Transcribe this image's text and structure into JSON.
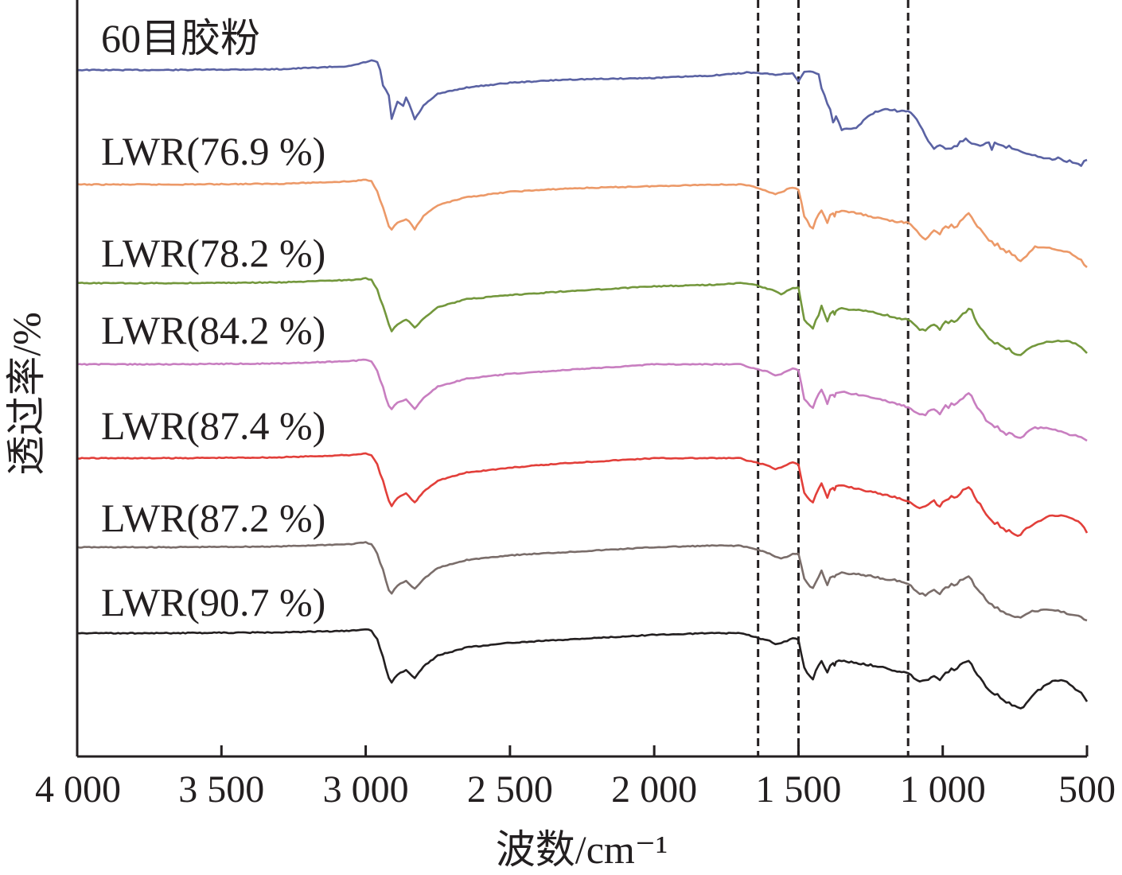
{
  "chart_data": {
    "type": "line",
    "xlabel": "波数/cm⁻¹",
    "ylabel": "透过率/%",
    "xlim": [
      4000,
      500
    ],
    "x_ticks": [
      4000,
      3500,
      3000,
      2500,
      2000,
      1500,
      1000,
      500
    ],
    "x_tick_labels": [
      "4 000",
      "3 500",
      "3 000",
      "2 500",
      "2 000",
      "1 500",
      "1 000",
      "500"
    ],
    "reference_lines_x": [
      1640,
      1500,
      1120
    ],
    "y_units": "arbitrary offset transmittance (relative to each trace baseline)",
    "grid": false,
    "legend": "inline labels above each trace",
    "x": [
      4000,
      3700,
      3300,
      3050,
      3000,
      2980,
      2960,
      2950,
      2940,
      2930,
      2920,
      2910,
      2890,
      2870,
      2860,
      2850,
      2830,
      2800,
      2750,
      2650,
      2500,
      2300,
      2000,
      1800,
      1700,
      1680,
      1640,
      1600,
      1580,
      1560,
      1540,
      1520,
      1500,
      1480,
      1460,
      1450,
      1440,
      1430,
      1420,
      1400,
      1390,
      1380,
      1375,
      1370,
      1350,
      1300,
      1250,
      1200,
      1150,
      1120,
      1100,
      1080,
      1060,
      1050,
      1040,
      1030,
      1020,
      1010,
      1000,
      990,
      980,
      970,
      960,
      950,
      940,
      930,
      920,
      910,
      900,
      890,
      880,
      870,
      860,
      850,
      840,
      830,
      820,
      810,
      800,
      790,
      780,
      770,
      760,
      750,
      740,
      730,
      720,
      710,
      700,
      690,
      680,
      670,
      660,
      650,
      640,
      630,
      620,
      600,
      580,
      560,
      540,
      520,
      510,
      500
    ],
    "series": [
      {
        "name": "60目胶粉",
        "color": "#5a62a3",
        "values": [
          0,
          0,
          -1,
          -5,
          -10,
          -12,
          -10,
          0,
          20,
          25,
          32,
          62,
          40,
          45,
          35,
          42,
          62,
          45,
          30,
          22,
          16,
          12,
          10,
          7,
          4,
          3,
          4,
          5,
          6,
          5,
          5,
          4,
          14,
          2,
          2,
          3,
          4,
          5,
          22,
          42,
          50,
          67,
          62,
          58,
          75,
          72,
          56,
          48,
          52,
          52,
          58,
          68,
          82,
          90,
          95,
          100,
          96,
          94,
          97,
          100,
          98,
          99,
          96,
          95,
          90,
          89,
          87,
          90,
          92,
          94,
          93,
          95,
          95,
          92,
          90,
          100,
          92,
          94,
          95,
          95,
          98,
          96,
          99,
          100,
          100,
          102,
          104,
          105,
          105,
          106,
          108,
          109,
          110,
          111,
          112,
          112,
          113,
          110,
          115,
          114,
          118,
          120,
          115,
          113
        ]
      },
      {
        "name": "LWR(76.9 %)",
        "color": "#ec9968",
        "values": [
          0,
          0,
          -1,
          -4,
          -6,
          -4,
          8,
          20,
          28,
          40,
          52,
          56,
          48,
          45,
          44,
          46,
          56,
          40,
          26,
          16,
          9,
          5,
          2,
          0,
          0,
          1,
          4,
          10,
          12,
          10,
          6,
          4,
          6,
          40,
          52,
          55,
          45,
          38,
          32,
          48,
          38,
          36,
          40,
          35,
          33,
          36,
          40,
          44,
          47,
          48,
          55,
          62,
          70,
          65,
          62,
          58,
          60,
          62,
          56,
          52,
          55,
          50,
          54,
          52,
          46,
          44,
          40,
          36,
          40,
          48,
          52,
          56,
          60,
          66,
          70,
          72,
          76,
          74,
          80,
          82,
          86,
          84,
          88,
          90,
          94,
          96,
          92,
          90,
          85,
          82,
          78,
          78,
          78,
          79,
          80,
          80,
          81,
          82,
          84,
          86,
          90,
          95,
          100,
          104
        ]
      },
      {
        "name": "LWR(78.2 %)",
        "color": "#73973c",
        "values": [
          0,
          0,
          -1,
          -4,
          -6,
          -4,
          8,
          20,
          28,
          40,
          52,
          60,
          52,
          48,
          46,
          48,
          56,
          44,
          30,
          20,
          15,
          10,
          4,
          2,
          0,
          0,
          3,
          8,
          10,
          14,
          10,
          6,
          6,
          46,
          54,
          56,
          46,
          40,
          28,
          48,
          38,
          36,
          40,
          34,
          32,
          34,
          36,
          40,
          44,
          46,
          52,
          58,
          60,
          56,
          54,
          52,
          55,
          58,
          52,
          48,
          50,
          46,
          48,
          46,
          42,
          38,
          36,
          32,
          34,
          44,
          50,
          55,
          60,
          66,
          70,
          72,
          76,
          74,
          78,
          80,
          84,
          82,
          86,
          88,
          90,
          90,
          88,
          84,
          82,
          80,
          78,
          77,
          76,
          75,
          74,
          74,
          74,
          73,
          72,
          74,
          76,
          80,
          84,
          88
        ]
      },
      {
        "name": "LWR(84.2 %)",
        "color": "#c87ec0",
        "values": [
          0,
          0,
          -1,
          -4,
          -6,
          -4,
          8,
          20,
          28,
          42,
          52,
          56,
          48,
          46,
          44,
          48,
          56,
          42,
          28,
          18,
          12,
          7,
          0,
          0,
          0,
          3,
          6,
          10,
          14,
          12,
          8,
          5,
          8,
          44,
          52,
          55,
          45,
          38,
          32,
          50,
          40,
          38,
          40,
          36,
          34,
          38,
          42,
          46,
          50,
          54,
          60,
          62,
          64,
          60,
          58,
          56,
          60,
          62,
          56,
          52,
          54,
          50,
          52,
          48,
          44,
          42,
          38,
          36,
          40,
          48,
          54,
          58,
          64,
          70,
          74,
          76,
          80,
          78,
          84,
          86,
          88,
          86,
          88,
          90,
          92,
          92,
          90,
          86,
          84,
          82,
          80,
          80,
          80,
          80,
          80,
          81,
          82,
          84,
          86,
          88,
          90,
          92,
          94,
          96
        ]
      },
      {
        "name": "LWR(87.4 %)",
        "color": "#e23f3a",
        "values": [
          0,
          0,
          -1,
          -4,
          -6,
          -4,
          8,
          20,
          28,
          42,
          54,
          60,
          50,
          46,
          44,
          48,
          56,
          42,
          28,
          18,
          12,
          6,
          0,
          0,
          0,
          3,
          6,
          10,
          14,
          12,
          8,
          5,
          8,
          44,
          52,
          55,
          45,
          38,
          32,
          50,
          40,
          38,
          40,
          36,
          34,
          38,
          42,
          46,
          50,
          54,
          60,
          62,
          60,
          58,
          56,
          54,
          58,
          60,
          56,
          52,
          52,
          48,
          50,
          48,
          44,
          40,
          38,
          36,
          40,
          48,
          54,
          58,
          64,
          70,
          74,
          78,
          82,
          80,
          86,
          88,
          92,
          90,
          94,
          96,
          98,
          96,
          92,
          88,
          86,
          84,
          82,
          80,
          78,
          76,
          74,
          72,
          72,
          72,
          72,
          74,
          78,
          82,
          88,
          94
        ]
      },
      {
        "name": "LWR(87.2 %)",
        "color": "#7a6d6a",
        "values": [
          0,
          0,
          -1,
          -4,
          -6,
          -4,
          8,
          20,
          28,
          42,
          54,
          58,
          48,
          44,
          42,
          46,
          52,
          40,
          26,
          16,
          10,
          6,
          0,
          -2,
          -2,
          0,
          3,
          8,
          12,
          14,
          12,
          8,
          8,
          40,
          50,
          52,
          44,
          38,
          30,
          48,
          38,
          36,
          38,
          34,
          32,
          34,
          36,
          40,
          42,
          46,
          52,
          58,
          60,
          58,
          56,
          54,
          56,
          58,
          54,
          50,
          50,
          46,
          48,
          46,
          42,
          40,
          38,
          36,
          40,
          48,
          52,
          56,
          60,
          66,
          70,
          72,
          76,
          76,
          80,
          82,
          84,
          84,
          86,
          88,
          88,
          88,
          86,
          84,
          82,
          80,
          80,
          80,
          79,
          78,
          78,
          78,
          79,
          80,
          82,
          84,
          86,
          88,
          90,
          92
        ]
      },
      {
        "name": "LWR(90.7 %)",
        "color": "#231f20",
        "values": [
          0,
          0,
          -1,
          -3,
          -5,
          -3,
          8,
          20,
          30,
          44,
          56,
          62,
          52,
          48,
          46,
          50,
          56,
          42,
          28,
          18,
          12,
          8,
          2,
          0,
          0,
          2,
          6,
          10,
          14,
          12,
          10,
          6,
          8,
          44,
          54,
          58,
          48,
          40,
          34,
          50,
          40,
          38,
          40,
          36,
          34,
          38,
          40,
          44,
          48,
          50,
          56,
          60,
          60,
          58,
          56,
          54,
          56,
          58,
          54,
          50,
          48,
          44,
          46,
          44,
          40,
          38,
          36,
          34,
          38,
          46,
          52,
          56,
          62,
          68,
          72,
          74,
          78,
          76,
          82,
          84,
          88,
          86,
          90,
          92,
          94,
          94,
          92,
          88,
          84,
          80,
          76,
          72,
          70,
          66,
          64,
          62,
          60,
          60,
          60,
          64,
          70,
          74,
          80,
          86
        ]
      }
    ]
  }
}
